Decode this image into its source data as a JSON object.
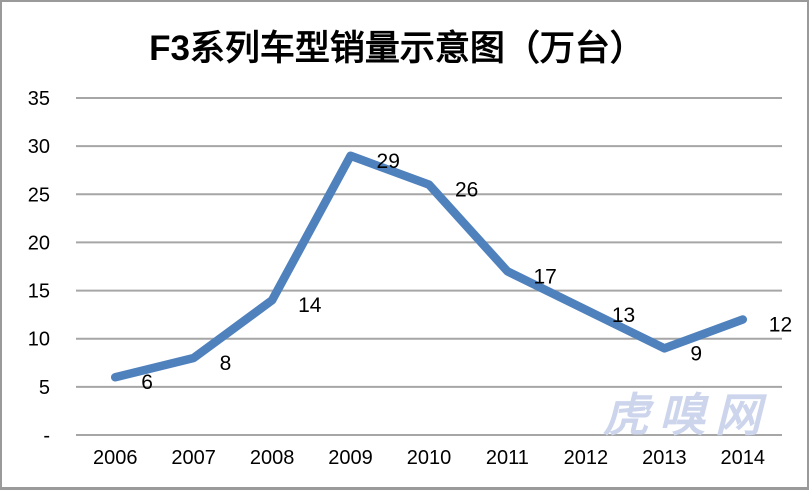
{
  "page": {
    "background": "#ffffff",
    "border_color": "#9a9a9a"
  },
  "title": "F3系列车型销量示意图（万台）",
  "watermark": {
    "text": "虎嗅网",
    "color": "#ccd5ec"
  },
  "chart_data": {
    "type": "line",
    "title": "F3系列车型销量示意图（万台）",
    "categories": [
      "2006",
      "2007",
      "2008",
      "2009",
      "2010",
      "2011",
      "2012",
      "2013",
      "2014"
    ],
    "values": [
      6,
      8,
      14,
      29,
      26,
      17,
      13,
      9,
      12
    ],
    "data_labels": [
      "6",
      "8",
      "14",
      "29",
      "26",
      "17",
      "13",
      "9",
      "12"
    ],
    "xlabel": "",
    "ylabel": "",
    "ylim": [
      0,
      35
    ],
    "ytick_interval": 5,
    "ytick_labels_bottom_to_top": [
      "-",
      "5",
      "10",
      "15",
      "20",
      "25",
      "30",
      "35"
    ],
    "grid": true,
    "legend": false,
    "line_color": "#4F81BD",
    "gridline_color": "#A6A6A6",
    "text_color": "#000000"
  }
}
